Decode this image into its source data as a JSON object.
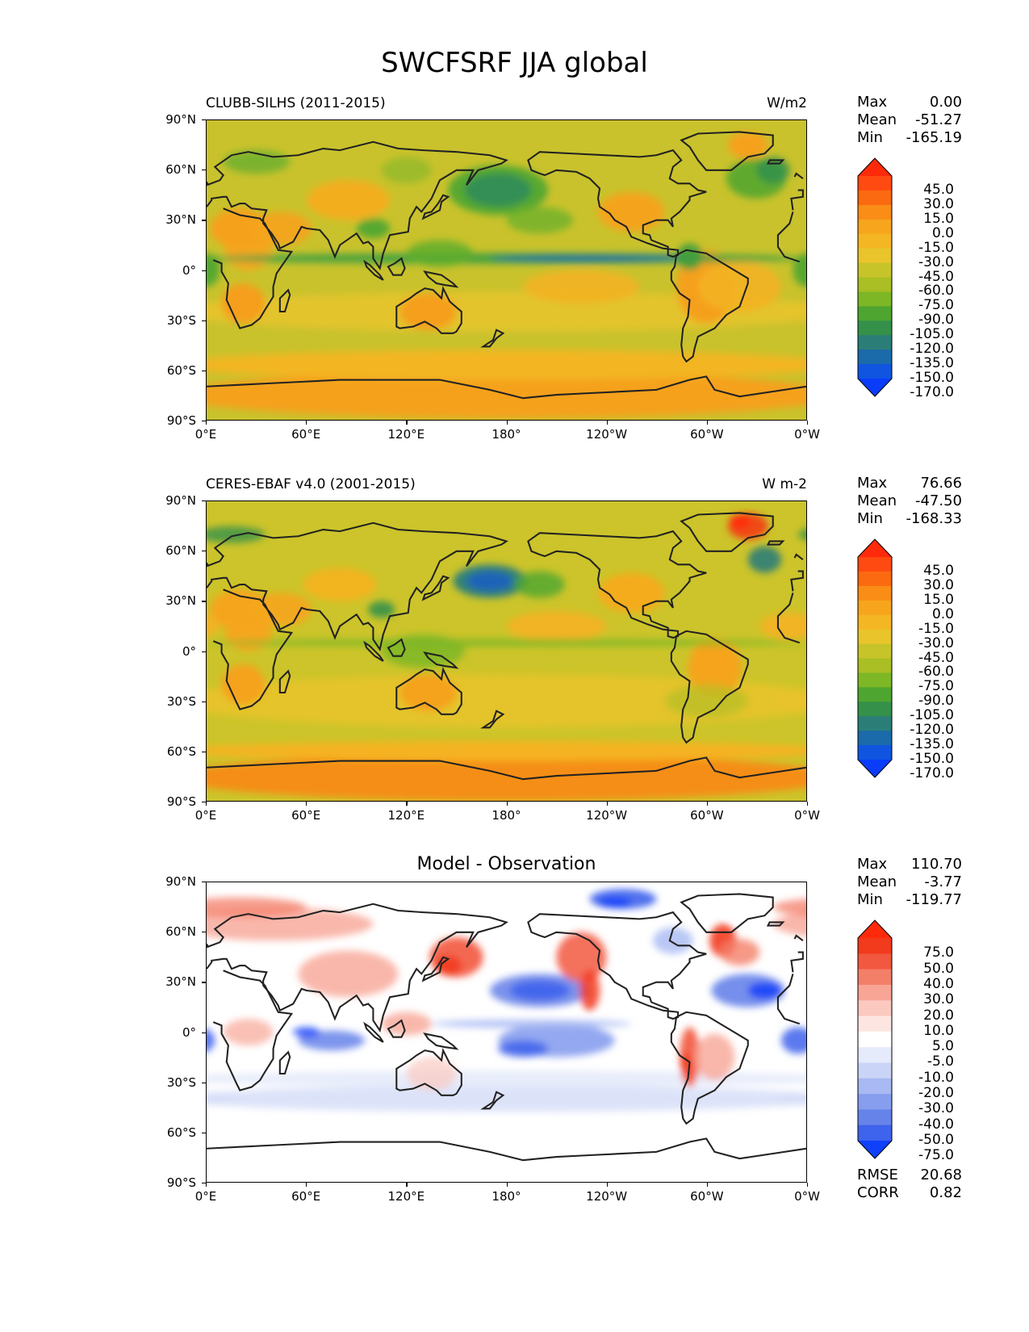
{
  "figure": {
    "title": "SWCFSRF JJA global",
    "lat_ticks": [
      "90°N",
      "60°N",
      "30°N",
      "0°",
      "30°S",
      "60°S",
      "90°S"
    ],
    "lon_ticks": [
      "0°E",
      "60°E",
      "120°E",
      "180°",
      "120°W",
      "60°W",
      "0°W"
    ]
  },
  "panels": [
    {
      "id": "model",
      "title": "CLUBB-SILHS (2011-2015)",
      "units": "W/m2",
      "stats": [
        {
          "label": "Max",
          "value": "0.00"
        },
        {
          "label": "Mean",
          "value": "-51.27"
        },
        {
          "label": "Min",
          "value": "-165.19"
        }
      ],
      "colorbar": {
        "labels": [
          "45.0",
          "30.0",
          "15.0",
          "0.0",
          "-15.0",
          "-30.0",
          "-45.0",
          "-60.0",
          "-75.0",
          "-90.0",
          "-105.0",
          "-120.0",
          "-135.0",
          "-150.0",
          "-170.0"
        ],
        "colors": [
          "#ff2a0a",
          "#ff4a12",
          "#fb6a10",
          "#f98d16",
          "#f7a51c",
          "#f5b623",
          "#e9c52b",
          "#c7c42a",
          "#a9bf24",
          "#7db726",
          "#4ea630",
          "#35914a",
          "#2b7e78",
          "#1b6aaa",
          "#0f55e0",
          "#0a3cfa"
        ]
      }
    },
    {
      "id": "obs",
      "title": "CERES-EBAF v4.0 (2001-2015)",
      "units": "W m-2",
      "stats": [
        {
          "label": "Max",
          "value": "76.66"
        },
        {
          "label": "Mean",
          "value": "-47.50"
        },
        {
          "label": "Min",
          "value": "-168.33"
        }
      ],
      "colorbar": {
        "labels": [
          "45.0",
          "30.0",
          "15.0",
          "0.0",
          "-15.0",
          "-30.0",
          "-45.0",
          "-60.0",
          "-75.0",
          "-90.0",
          "-105.0",
          "-120.0",
          "-135.0",
          "-150.0",
          "-170.0"
        ],
        "colors": [
          "#ff2a0a",
          "#ff4a12",
          "#fb6a10",
          "#f98d16",
          "#f7a51c",
          "#f5b623",
          "#e9c52b",
          "#c7c42a",
          "#a9bf24",
          "#7db726",
          "#4ea630",
          "#35914a",
          "#2b7e78",
          "#1b6aaa",
          "#0f55e0",
          "#0a3cfa"
        ]
      }
    },
    {
      "id": "diff",
      "title": "Model - Observation",
      "units": "",
      "stats": [
        {
          "label": "Max",
          "value": "110.70"
        },
        {
          "label": "Mean",
          "value": "-3.77"
        },
        {
          "label": "Min",
          "value": "-119.77"
        }
      ],
      "extra_stats": [
        {
          "label": "RMSE",
          "value": "20.68"
        },
        {
          "label": "CORR",
          "value": "0.82"
        }
      ],
      "colorbar": {
        "labels": [
          "75.0",
          "50.0",
          "40.0",
          "30.0",
          "20.0",
          "10.0",
          "5.0",
          "-5.0",
          "-10.0",
          "-20.0",
          "-30.0",
          "-40.0",
          "-50.0",
          "-75.0"
        ],
        "colors": [
          "#ff2a0a",
          "#f23a1c",
          "#f2583f",
          "#f47f69",
          "#f8a596",
          "#fbc9c0",
          "#fde6e2",
          "#ffffff",
          "#e6ebfb",
          "#c9d4f7",
          "#a8b9f3",
          "#879eee",
          "#6683ea",
          "#3e63ec",
          "#1040fa"
        ]
      }
    }
  ]
}
